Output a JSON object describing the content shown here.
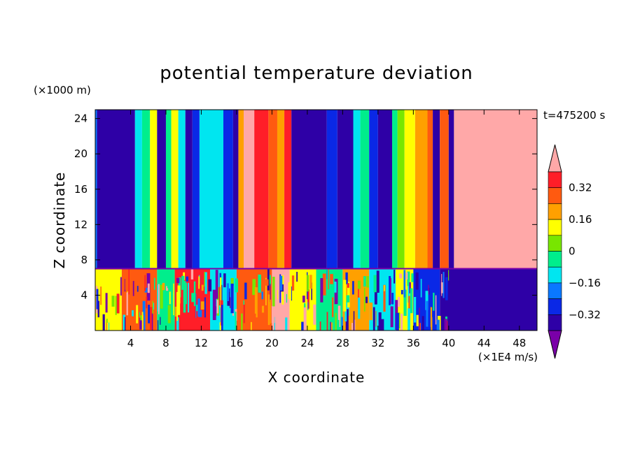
{
  "chart_data": {
    "type": "heatmap",
    "title": "potential temperature deviation",
    "xlabel": "X coordinate",
    "ylabel": "Z coordinate",
    "x_unit": "(×1E4 m/s)",
    "y_unit": "(×1000 m)",
    "time_label": "t=475200 s",
    "xlim": [
      0,
      50
    ],
    "ylim": [
      0,
      25
    ],
    "x_ticks": [
      4,
      8,
      12,
      16,
      20,
      24,
      28,
      32,
      36,
      40,
      44,
      48
    ],
    "y_ticks": [
      4,
      8,
      12,
      16,
      20,
      24
    ],
    "colorbar": {
      "levels": [
        -0.4,
        -0.32,
        -0.24,
        -0.16,
        -0.08,
        0,
        0.08,
        0.16,
        0.24,
        0.32,
        0.4
      ],
      "tick_labels": [
        "0.32",
        "0.16",
        "0",
        "−0.16",
        "−0.32"
      ],
      "tick_values": [
        0.32,
        0.16,
        0,
        -0.16,
        -0.32
      ],
      "colors": [
        "#7a00a8",
        "#2e00a6",
        "#0a28e6",
        "#0a78ff",
        "#00e6f0",
        "#00ee8c",
        "#78e600",
        "#ffff00",
        "#ffa000",
        "#ff5a10",
        "#ff1e28",
        "#ffa8a8"
      ],
      "extend": "both"
    },
    "upper_layer": {
      "z_range": [
        7,
        25
      ],
      "x_bands": [
        {
          "x": [
            0,
            0.2
          ],
          "value": -0.24
        },
        {
          "x": [
            0.2,
            4.5
          ],
          "value": -0.4
        },
        {
          "x": [
            4.5,
            5.3
          ],
          "value": -0.16
        },
        {
          "x": [
            5.3,
            6.2
          ],
          "value": -0.08
        },
        {
          "x": [
            6.2,
            7.0
          ],
          "value": 0.08
        },
        {
          "x": [
            7.0,
            8.0
          ],
          "value": -0.4
        },
        {
          "x": [
            8.0,
            8.6
          ],
          "value": -0.08
        },
        {
          "x": [
            8.6,
            9.4
          ],
          "value": 0.08
        },
        {
          "x": [
            9.4,
            10.2
          ],
          "value": -0.16
        },
        {
          "x": [
            10.2,
            11.0
          ],
          "value": -0.4
        },
        {
          "x": [
            11.0,
            11.8
          ],
          "value": -0.32
        },
        {
          "x": [
            11.8,
            14.5
          ],
          "value": -0.16
        },
        {
          "x": [
            14.5,
            15.6
          ],
          "value": -0.32
        },
        {
          "x": [
            15.6,
            16.2
          ],
          "value": -0.4
        },
        {
          "x": [
            16.2,
            16.8
          ],
          "value": 0.16
        },
        {
          "x": [
            16.8,
            18.0
          ],
          "value": 0.4
        },
        {
          "x": [
            18.0,
            19.6
          ],
          "value": 0.32
        },
        {
          "x": [
            19.6,
            20.6
          ],
          "value": 0.24
        },
        {
          "x": [
            20.6,
            21.4
          ],
          "value": 0.16
        },
        {
          "x": [
            21.4,
            22.2
          ],
          "value": 0.32
        },
        {
          "x": [
            22.2,
            26.2
          ],
          "value": -0.4
        },
        {
          "x": [
            26.2,
            27.4
          ],
          "value": -0.32
        },
        {
          "x": [
            27.4,
            29.2
          ],
          "value": -0.4
        },
        {
          "x": [
            29.2,
            30.0
          ],
          "value": -0.16
        },
        {
          "x": [
            30.0,
            31.0
          ],
          "value": -0.08
        },
        {
          "x": [
            31.0,
            32.0
          ],
          "value": -0.32
        },
        {
          "x": [
            32.0,
            33.6
          ],
          "value": -0.4
        },
        {
          "x": [
            33.6,
            34.2
          ],
          "value": -0.08
        },
        {
          "x": [
            34.2,
            35.0
          ],
          "value": 0
        },
        {
          "x": [
            35.0,
            36.2
          ],
          "value": 0.08
        },
        {
          "x": [
            36.2,
            37.6
          ],
          "value": 0.16
        },
        {
          "x": [
            37.6,
            38.2
          ],
          "value": 0.24
        },
        {
          "x": [
            38.2,
            39.0
          ],
          "value": -0.4
        },
        {
          "x": [
            39.0,
            40.0
          ],
          "value": 0.24
        },
        {
          "x": [
            40.0,
            40.6
          ],
          "value": -0.4
        },
        {
          "x": [
            40.6,
            50
          ],
          "value": 0.4
        }
      ]
    },
    "lower_layer": {
      "z_range": [
        0,
        7
      ],
      "x_bands": [
        {
          "x": [
            0,
            3
          ],
          "value": 0.08
        },
        {
          "x": [
            3,
            7
          ],
          "value": 0.24
        },
        {
          "x": [
            7,
            9
          ],
          "value": -0.08
        },
        {
          "x": [
            9,
            13
          ],
          "value": 0.32
        },
        {
          "x": [
            13,
            16
          ],
          "value": -0.16
        },
        {
          "x": [
            16,
            20
          ],
          "value": 0.24
        },
        {
          "x": [
            20,
            22
          ],
          "value": 0.4
        },
        {
          "x": [
            22,
            25
          ],
          "value": 0.08
        },
        {
          "x": [
            25,
            28
          ],
          "value": -0.08
        },
        {
          "x": [
            28,
            31
          ],
          "value": 0.16
        },
        {
          "x": [
            31,
            34
          ],
          "value": -0.16
        },
        {
          "x": [
            34,
            36
          ],
          "value": 0.08
        },
        {
          "x": [
            36,
            39
          ],
          "value": -0.32
        },
        {
          "x": [
            39,
            50
          ],
          "value": -0.4
        }
      ]
    }
  }
}
